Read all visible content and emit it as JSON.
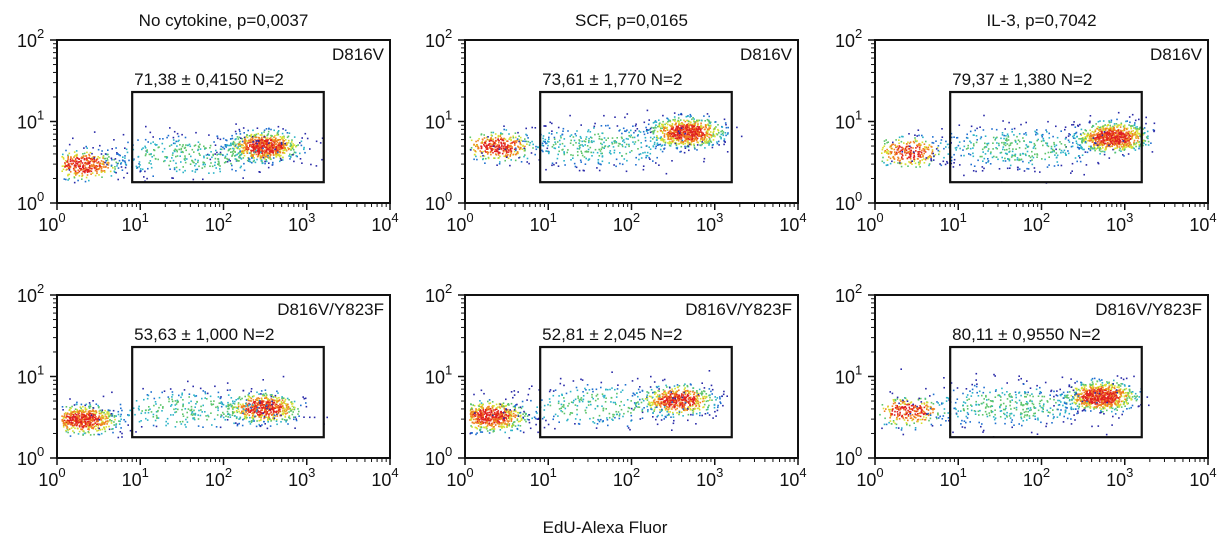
{
  "figure": {
    "xlabel": "EdU-Alexa Fluor"
  },
  "colors": {
    "density_scale": [
      "#2a2aa8",
      "#1f6fd0",
      "#2bb3c8",
      "#5cc46a",
      "#d8e030",
      "#f08020",
      "#e02020"
    ]
  },
  "chart_data": [
    {
      "type": "scatter",
      "plot_style": "density",
      "title": "No cytokine, p=0,0037",
      "label": "D816V",
      "gate_stat": "71,38 ± 0,4150 N=2",
      "xscale": "log",
      "yscale": "log",
      "xlim": [
        1,
        10000
      ],
      "ylim": [
        1,
        100
      ],
      "xticks": [
        {
          "base": "10",
          "exp": "0"
        },
        {
          "base": "10",
          "exp": "1"
        },
        {
          "base": "10",
          "exp": "2"
        },
        {
          "base": "10",
          "exp": "3"
        },
        {
          "base": "10",
          "exp": "4"
        }
      ],
      "yticks": [
        {
          "base": "10",
          "exp": "0"
        },
        {
          "base": "10",
          "exp": "1"
        },
        {
          "base": "10",
          "exp": "2"
        }
      ],
      "gate": {
        "x": [
          8,
          1600
        ],
        "y": [
          1.8,
          23
        ]
      },
      "clusters": [
        {
          "x": 2,
          "y": 3,
          "weight": 0.25
        },
        {
          "x": 300,
          "y": 5,
          "weight": 0.5
        },
        {
          "x": 40,
          "y": 3.8,
          "weight": 0.25
        }
      ]
    },
    {
      "type": "scatter",
      "plot_style": "density",
      "title": "SCF, p=0,0165",
      "label": "D816V",
      "gate_stat": "73,61 ± 1,770 N=2",
      "xscale": "log",
      "yscale": "log",
      "xlim": [
        1,
        10000
      ],
      "ylim": [
        1,
        100
      ],
      "xticks": [
        {
          "base": "10",
          "exp": "0"
        },
        {
          "base": "10",
          "exp": "1"
        },
        {
          "base": "10",
          "exp": "2"
        },
        {
          "base": "10",
          "exp": "3"
        },
        {
          "base": "10",
          "exp": "4"
        }
      ],
      "yticks": [
        {
          "base": "10",
          "exp": "0"
        },
        {
          "base": "10",
          "exp": "1"
        },
        {
          "base": "10",
          "exp": "2"
        }
      ],
      "gate": {
        "x": [
          8,
          1600
        ],
        "y": [
          1.8,
          23
        ]
      },
      "clusters": [
        {
          "x": 2.5,
          "y": 5,
          "weight": 0.22
        },
        {
          "x": 450,
          "y": 7.5,
          "weight": 0.53
        },
        {
          "x": 40,
          "y": 5.2,
          "weight": 0.25
        }
      ]
    },
    {
      "type": "scatter",
      "plot_style": "density",
      "title": "IL-3, p=0,7042",
      "label": "D816V",
      "gate_stat": "79,37 ± 1,380 N=2",
      "xscale": "log",
      "yscale": "log",
      "xlim": [
        1,
        10000
      ],
      "ylim": [
        1,
        100
      ],
      "xticks": [
        {
          "base": "10",
          "exp": "0"
        },
        {
          "base": "10",
          "exp": "1"
        },
        {
          "base": "10",
          "exp": "2"
        },
        {
          "base": "10",
          "exp": "3"
        },
        {
          "base": "10",
          "exp": "4"
        }
      ],
      "yticks": [
        {
          "base": "10",
          "exp": "0"
        },
        {
          "base": "10",
          "exp": "1"
        },
        {
          "base": "10",
          "exp": "2"
        }
      ],
      "gate": {
        "x": [
          8,
          1600
        ],
        "y": [
          1.8,
          23
        ]
      },
      "clusters": [
        {
          "x": 2.5,
          "y": 4.3,
          "weight": 0.18
        },
        {
          "x": 700,
          "y": 6.5,
          "weight": 0.55
        },
        {
          "x": 50,
          "y": 4.8,
          "weight": 0.27
        }
      ]
    },
    {
      "type": "scatter",
      "plot_style": "density",
      "title": "",
      "label": "D816V/Y823F",
      "gate_stat": "53,63 ± 1,000 N=2",
      "xscale": "log",
      "yscale": "log",
      "xlim": [
        1,
        10000
      ],
      "ylim": [
        1,
        100
      ],
      "xticks": [
        {
          "base": "10",
          "exp": "0"
        },
        {
          "base": "10",
          "exp": "1"
        },
        {
          "base": "10",
          "exp": "2"
        },
        {
          "base": "10",
          "exp": "3"
        },
        {
          "base": "10",
          "exp": "4"
        }
      ],
      "yticks": [
        {
          "base": "10",
          "exp": "0"
        },
        {
          "base": "10",
          "exp": "1"
        },
        {
          "base": "10",
          "exp": "2"
        }
      ],
      "gate": {
        "x": [
          8,
          1600
        ],
        "y": [
          1.8,
          23
        ]
      },
      "clusters": [
        {
          "x": 2,
          "y": 3,
          "weight": 0.42
        },
        {
          "x": 300,
          "y": 4.2,
          "weight": 0.38
        },
        {
          "x": 40,
          "y": 4,
          "weight": 0.2
        }
      ]
    },
    {
      "type": "scatter",
      "plot_style": "density",
      "title": "",
      "label": "D816V/Y823F",
      "gate_stat": "52,81 ± 2,045 N=2",
      "xscale": "log",
      "yscale": "log",
      "xlim": [
        1,
        10000
      ],
      "ylim": [
        1,
        100
      ],
      "xticks": [
        {
          "base": "10",
          "exp": "0"
        },
        {
          "base": "10",
          "exp": "1"
        },
        {
          "base": "10",
          "exp": "2"
        },
        {
          "base": "10",
          "exp": "3"
        },
        {
          "base": "10",
          "exp": "4"
        }
      ],
      "yticks": [
        {
          "base": "10",
          "exp": "0"
        },
        {
          "base": "10",
          "exp": "1"
        },
        {
          "base": "10",
          "exp": "2"
        }
      ],
      "gate": {
        "x": [
          8,
          1600
        ],
        "y": [
          1.8,
          23
        ]
      },
      "clusters": [
        {
          "x": 2,
          "y": 3.3,
          "weight": 0.42
        },
        {
          "x": 350,
          "y": 5.2,
          "weight": 0.38
        },
        {
          "x": 40,
          "y": 4.5,
          "weight": 0.2
        }
      ]
    },
    {
      "type": "scatter",
      "plot_style": "density",
      "title": "",
      "label": "D816V/Y823F",
      "gate_stat": "80,11 ± 0,9550 N=2",
      "xscale": "log",
      "yscale": "log",
      "xlim": [
        1,
        10000
      ],
      "ylim": [
        1,
        100
      ],
      "xticks": [
        {
          "base": "10",
          "exp": "0"
        },
        {
          "base": "10",
          "exp": "1"
        },
        {
          "base": "10",
          "exp": "2"
        },
        {
          "base": "10",
          "exp": "3"
        },
        {
          "base": "10",
          "exp": "4"
        }
      ],
      "yticks": [
        {
          "base": "10",
          "exp": "0"
        },
        {
          "base": "10",
          "exp": "1"
        },
        {
          "base": "10",
          "exp": "2"
        }
      ],
      "gate": {
        "x": [
          8,
          1600
        ],
        "y": [
          1.8,
          23
        ]
      },
      "clusters": [
        {
          "x": 2.5,
          "y": 3.8,
          "weight": 0.18
        },
        {
          "x": 500,
          "y": 5.8,
          "weight": 0.55
        },
        {
          "x": 40,
          "y": 4.5,
          "weight": 0.27
        }
      ]
    }
  ]
}
